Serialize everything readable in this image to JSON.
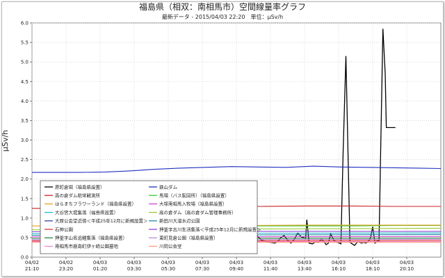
{
  "chart_data": {
    "type": "line",
    "title": "福島県（相双：南相馬市）空間線量率グラフ",
    "subtitle": "最新データ - 2015/04/03 22:20　単位：μSv/h",
    "ylabel": "μSv/h",
    "xlabel": "",
    "ylim": [
      0,
      6.0
    ],
    "y_ticks": [
      "0.0",
      "0.5",
      "1.0",
      "1.5",
      "2.0",
      "2.5",
      "3.0",
      "3.5",
      "4.0",
      "4.5",
      "5.0",
      "5.5",
      "6.0"
    ],
    "x_ticks": [
      {
        "date": "04/02",
        "time": "21:10"
      },
      {
        "date": "04/02",
        "time": "23:20"
      },
      {
        "date": "04/03",
        "time": "01:20"
      },
      {
        "date": "04/03",
        "time": "03:30"
      },
      {
        "date": "04/03",
        "time": "05:30"
      },
      {
        "date": "04/03",
        "time": "07:30"
      },
      {
        "date": "04/03",
        "time": "09:40"
      },
      {
        "date": "04/03",
        "time": "11:40"
      },
      {
        "date": "04/03",
        "time": "13:40"
      },
      {
        "date": "04/03",
        "time": "16:10"
      },
      {
        "date": "04/03",
        "time": "18:10"
      },
      {
        "date": "04/03",
        "time": "20:10"
      }
    ],
    "grid": true,
    "legend_position": "bottom-left",
    "legend": [
      {
        "name": "原町倉堀（福島県設置）",
        "color": "#000000"
      },
      {
        "name": "鉄山ダム",
        "color": "#1f2fbf"
      },
      {
        "name": "高の倉ダム助常観測所",
        "color": "#cc2222"
      },
      {
        "name": "馬場（バス転回所）（福島県設置）",
        "color": "#33cc33"
      },
      {
        "name": "はらまちフラワーランド（福島県設置）",
        "color": "#e8a020"
      },
      {
        "name": "大塚南相馬入牧場（福島県設置）",
        "color": "#cc44cc"
      },
      {
        "name": "大谷宮大堤集落（福島県設置）",
        "color": "#22bbcc"
      },
      {
        "name": "高の倉ダム（高の倉ダム管理事務所）",
        "color": "#99cc33"
      },
      {
        "name": "大原公会堂近傍＜平成25年12月に新規設置＞",
        "color": "#3344aa"
      },
      {
        "name": "新田川大溜水辺公園",
        "color": "#2288aa"
      },
      {
        "name": "石神公園",
        "color": "#dd3333"
      },
      {
        "name": "押釜字古川生活集落＜平成25年12月に新規設置＞",
        "color": "#8844cc"
      },
      {
        "name": "押釜字山名追鯉集落（福島県設置）",
        "color": "#228833"
      },
      {
        "name": "東町見倉公園（福島県設置）",
        "color": "#bb88dd"
      },
      {
        "name": "南相馬市鹿島町伊ヶ崎公園墓地",
        "color": "#ee88cc"
      },
      {
        "name": "川岡公会堂",
        "color": "#ff9977"
      }
    ],
    "series": [
      {
        "name": "原町倉堀（福島県設置）",
        "color": "#000000",
        "points": [
          [
            6.55,
            0.3
          ],
          [
            6.75,
            0.36
          ],
          [
            6.95,
            0.38
          ],
          [
            7.05,
            0.42
          ],
          [
            7.15,
            0.56
          ],
          [
            7.3,
            0.4
          ],
          [
            7.45,
            0.36
          ],
          [
            7.6,
            0.46
          ],
          [
            7.75,
            0.4
          ],
          [
            7.85,
            0.38
          ],
          [
            8.0,
            0.5
          ],
          [
            8.1,
            0.62
          ],
          [
            8.3,
            0.44
          ],
          [
            8.45,
            0.38
          ],
          [
            8.6,
            0.36
          ],
          [
            8.8,
            0.32
          ],
          [
            8.95,
            0.4
          ],
          [
            9.1,
            0.48
          ],
          [
            9.3,
            0.32
          ],
          [
            9.45,
            0.36
          ],
          [
            9.6,
            0.4
          ],
          [
            9.75,
            0.46
          ],
          [
            9.9,
            0.55
          ],
          [
            10.1,
            0.44
          ],
          [
            10.3,
            0.4
          ],
          [
            10.5,
            0.38
          ],
          [
            10.7,
            0.36
          ],
          [
            10.85,
            0.42
          ],
          [
            10.95,
            0.5
          ],
          [
            11.1,
            0.55
          ],
          [
            11.25,
            0.44
          ],
          [
            11.4,
            0.36
          ],
          [
            11.55,
            0.46
          ],
          [
            11.7,
            0.62
          ],
          [
            11.85,
            0.52
          ],
          [
            11.95,
            0.5
          ],
          [
            12.05,
            0.48
          ],
          [
            12.1,
            0.96
          ],
          [
            12.2,
            0.36
          ],
          [
            12.35,
            0.34
          ],
          [
            12.5,
            0.4
          ],
          [
            12.6,
            0.38
          ],
          [
            12.75,
            0.46
          ],
          [
            12.85,
            0.4
          ],
          [
            12.95,
            0.32
          ],
          [
            13.05,
            0.36
          ],
          [
            13.15,
            0.6
          ],
          [
            13.3,
            0.42
          ],
          [
            13.45,
            0.38
          ],
          [
            13.6,
            0.34
          ],
          [
            13.7,
            2.7
          ],
          [
            13.82,
            5.15
          ],
          [
            13.9,
            3.0
          ],
          [
            14.0,
            0.38
          ],
          [
            14.1,
            0.34
          ],
          [
            14.2,
            0.3
          ],
          [
            14.35,
            0.4
          ],
          [
            14.5,
            0.36
          ],
          [
            14.6,
            0.38
          ],
          [
            14.7,
            0.36
          ],
          [
            14.8,
            0.4
          ],
          [
            14.9,
            0.48
          ],
          [
            15.0,
            0.78
          ],
          [
            15.1,
            0.36
          ],
          [
            15.2,
            0.42
          ],
          [
            15.28,
            0.4
          ],
          [
            15.45,
            5.85
          ],
          [
            15.55,
            4.7
          ],
          [
            15.6,
            3.32
          ],
          [
            16.0,
            3.32
          ]
        ]
      },
      {
        "name": "鉄山ダム",
        "color": "#1f2fbf",
        "points": [
          [
            0,
            2.17
          ],
          [
            2.0,
            2.17
          ],
          [
            3.2,
            2.18
          ],
          [
            4.3,
            2.21
          ],
          [
            5.4,
            2.25
          ],
          [
            6.5,
            2.28
          ],
          [
            7.6,
            2.3
          ],
          [
            8.8,
            2.32
          ],
          [
            10.0,
            2.31
          ],
          [
            11.2,
            2.3
          ],
          [
            12.4,
            2.33
          ],
          [
            13.6,
            2.31
          ],
          [
            14.8,
            2.3
          ],
          [
            16.0,
            2.29
          ],
          [
            17.0,
            2.28
          ],
          [
            18.0,
            2.27
          ]
        ]
      },
      {
        "name": "高の倉ダム助常観測所",
        "color": "#cc2222",
        "points": [
          [
            0,
            1.25
          ],
          [
            2.0,
            1.25
          ],
          [
            4.0,
            1.26
          ],
          [
            6.0,
            1.27
          ],
          [
            8.0,
            1.29
          ],
          [
            10.0,
            1.3
          ],
          [
            12.0,
            1.31
          ],
          [
            14.0,
            1.31
          ],
          [
            16.0,
            1.3
          ],
          [
            18.0,
            1.3
          ]
        ]
      },
      {
        "name": "馬場（バス転回所）（福島県設置）",
        "color": "#33cc33",
        "points": [
          [
            9.0,
            0.78
          ],
          [
            9.3,
            0.79
          ],
          [
            9.55,
            1.05
          ],
          [
            9.8,
            0.8
          ],
          [
            12.0,
            0.8
          ],
          [
            14.0,
            0.8
          ],
          [
            16.0,
            0.81
          ],
          [
            18.0,
            0.81
          ]
        ]
      },
      {
        "name": "はらまちフラワーランド（福島県設置）",
        "color": "#e8a020",
        "points": [
          [
            0,
            0.8
          ],
          [
            6.0,
            0.8
          ],
          [
            12.0,
            0.82
          ],
          [
            18.0,
            0.82
          ]
        ]
      },
      {
        "name": "高の倉ダム（高の倉ダム管理事務所）",
        "color": "#99cc33",
        "points": [
          [
            0,
            0.7
          ],
          [
            9.0,
            0.72
          ],
          [
            18.0,
            0.74
          ]
        ]
      },
      {
        "name": "押釜字古川生活集落＜平成25年12月に新規設置＞",
        "color": "#8844cc",
        "points": [
          [
            0,
            0.65
          ],
          [
            9.0,
            0.66
          ],
          [
            18.0,
            0.66
          ]
        ]
      },
      {
        "name": "大谷宮大堤集落（福島県設置）",
        "color": "#22bbcc",
        "points": [
          [
            0,
            0.6
          ],
          [
            9.0,
            0.61
          ],
          [
            18.0,
            0.62
          ]
        ]
      },
      {
        "name": "新田川大溜水辺公園",
        "color": "#2288aa",
        "points": [
          [
            0,
            0.56
          ],
          [
            9.0,
            0.57
          ],
          [
            18.0,
            0.58
          ]
        ]
      },
      {
        "name": "大塚南相馬入牧場（福島県設置）",
        "color": "#cc44cc",
        "points": [
          [
            0,
            0.52
          ],
          [
            9.0,
            0.52
          ],
          [
            18.0,
            0.53
          ]
        ]
      },
      {
        "name": "押釜字山名追鯉集落（福島県設置）",
        "color": "#228833",
        "points": [
          [
            0,
            0.48
          ],
          [
            9.0,
            0.48
          ],
          [
            18.0,
            0.49
          ]
        ]
      },
      {
        "name": "東町見倉公園（福島県設置）",
        "color": "#bb88dd",
        "points": [
          [
            0,
            0.45
          ],
          [
            9.0,
            0.45
          ],
          [
            18.0,
            0.46
          ]
        ]
      },
      {
        "name": "石神公園",
        "color": "#dd3333",
        "points": [
          [
            0,
            0.42
          ],
          [
            9.0,
            0.42
          ],
          [
            18.0,
            0.43
          ]
        ]
      },
      {
        "name": "南相馬市鹿島町伊ヶ崎公園墓地",
        "color": "#ee88cc",
        "points": [
          [
            0,
            0.4
          ],
          [
            9.0,
            0.4
          ],
          [
            18.0,
            0.4
          ]
        ]
      },
      {
        "name": "川岡公会堂",
        "color": "#ff9977",
        "points": [
          [
            0,
            0.38
          ],
          [
            9.0,
            0.38
          ],
          [
            18.0,
            0.38
          ]
        ]
      }
    ]
  }
}
